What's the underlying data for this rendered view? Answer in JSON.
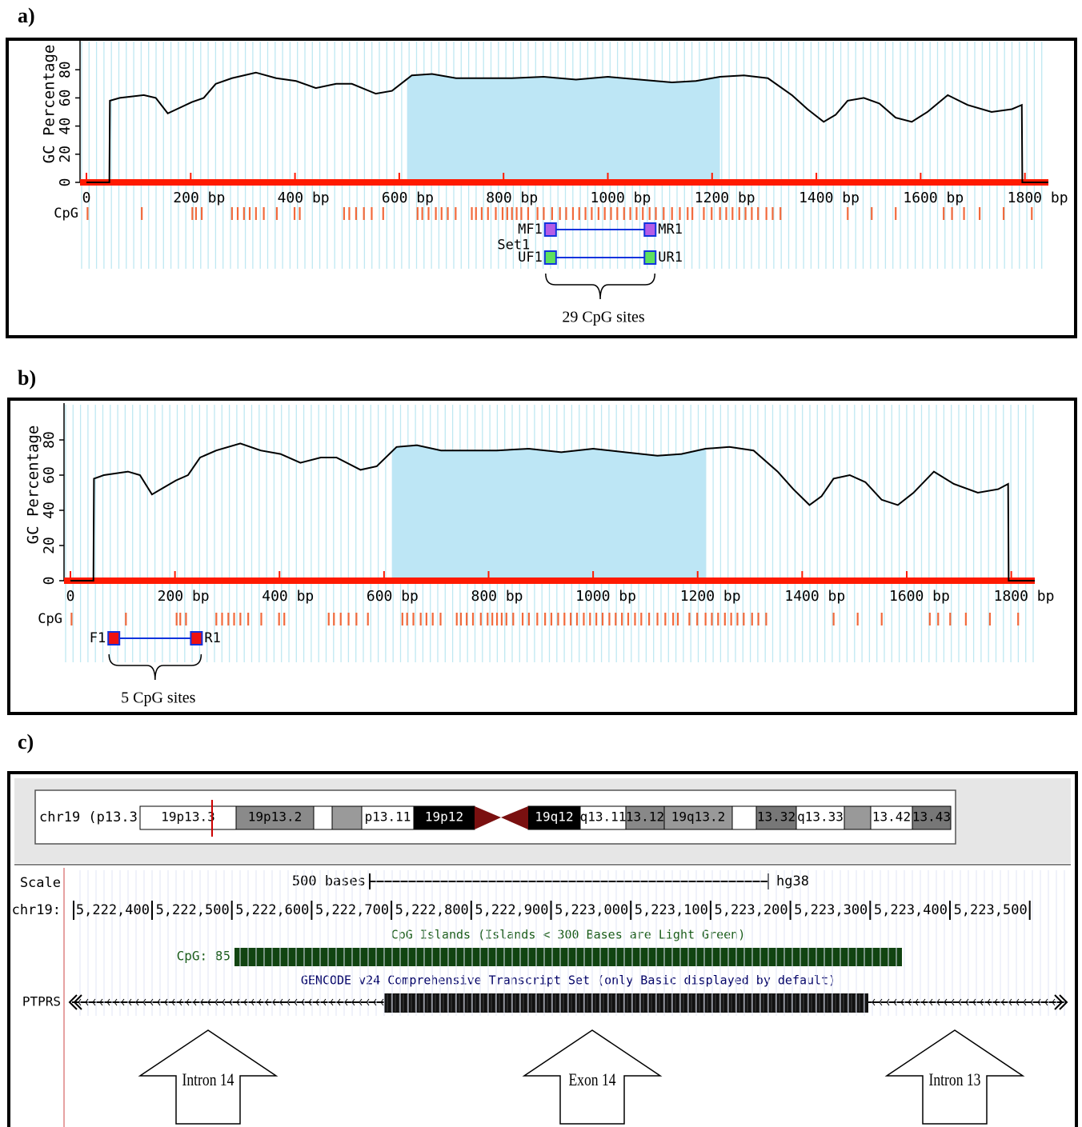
{
  "chart_data": [
    {
      "type": "line",
      "label": "a)",
      "y_label": "GC Percentage",
      "color": "#000000",
      "x": [
        0,
        44,
        45,
        64,
        110,
        133,
        156,
        179,
        202,
        225,
        248,
        279,
        325,
        364,
        402,
        440,
        479,
        509,
        555,
        586,
        624,
        663,
        709,
        755,
        816,
        877,
        939,
        1000,
        1061,
        1123,
        1169,
        1215,
        1261,
        1307,
        1353,
        1383,
        1414,
        1437,
        1460,
        1491,
        1521,
        1552,
        1583,
        1613,
        1652,
        1690,
        1736,
        1775,
        1794,
        1795,
        1845
      ],
      "values": [
        0,
        0,
        58,
        60,
        62,
        60,
        49,
        53,
        57,
        60,
        70,
        74,
        78,
        74,
        72,
        67,
        70,
        70,
        63,
        65,
        76,
        77,
        74,
        74,
        74,
        75,
        73,
        75,
        73,
        71,
        72,
        75,
        76,
        74,
        62,
        52,
        43,
        48,
        58,
        60,
        56,
        46,
        43,
        50,
        62,
        55,
        50,
        52,
        55,
        0,
        0
      ],
      "xlim": [
        0,
        1845
      ],
      "ylim": [
        0,
        100
      ],
      "xticks": [
        0,
        {
          "value": 200,
          "label": "200  bp"
        },
        {
          "value": 400,
          "label": "400  bp"
        },
        {
          "value": 600,
          "label": "600  bp"
        },
        {
          "value": 800,
          "label": "800  bp"
        },
        {
          "value": 1000,
          "label": "1000  bp"
        },
        {
          "value": 1200,
          "label": "1200  bp"
        },
        {
          "value": 1400,
          "label": "1400  bp"
        },
        {
          "value": 1600,
          "label": "1600  bp"
        },
        {
          "value": 1800,
          "label": "1800  bp"
        }
      ],
      "yticks": [
        0,
        20,
        40,
        60,
        80
      ],
      "highlight": [
        615,
        1215
      ],
      "highlight_color": "#bde6f5",
      "baseline_color": "#ff1a00",
      "cpg_label": "CpG",
      "cpg_color": "#f26a3c",
      "cpg_sites": [
        2,
        106,
        203,
        210,
        221,
        279,
        290,
        302,
        313,
        325,
        340,
        365,
        399,
        409,
        494,
        504,
        517,
        532,
        547,
        569,
        635,
        644,
        656,
        670,
        681,
        693,
        708,
        739,
        747,
        758,
        770,
        785,
        798,
        807,
        816,
        825,
        834,
        847,
        865,
        877,
        893,
        908,
        920,
        933,
        945,
        957,
        969,
        982,
        994,
        1006,
        1018,
        1031,
        1043,
        1055,
        1067,
        1080,
        1092,
        1107,
        1123,
        1138,
        1153,
        1162,
        1184,
        1199,
        1215,
        1227,
        1239,
        1252,
        1264,
        1276,
        1288,
        1304,
        1316,
        1331,
        1460,
        1506,
        1552,
        1644,
        1660,
        1683,
        1713,
        1759,
        1813
      ],
      "set_label": "Set1",
      "primers": [
        {
          "forward": "MF1",
          "reverse": "MR1",
          "start": 890,
          "end": 1081,
          "color": "#b45ce6"
        },
        {
          "forward": "UF1",
          "reverse": "UR1",
          "start": 890,
          "end": 1081,
          "color": "#5de05d"
        }
      ],
      "annotation": "29 CpG sites"
    },
    {
      "type": "line",
      "label": "b)",
      "y_label": "GC Percentage",
      "color": "#000000",
      "x": [
        0,
        44,
        45,
        64,
        110,
        133,
        156,
        179,
        202,
        225,
        248,
        279,
        325,
        364,
        402,
        440,
        479,
        509,
        555,
        586,
        624,
        663,
        709,
        755,
        816,
        877,
        939,
        1000,
        1061,
        1123,
        1169,
        1215,
        1261,
        1307,
        1353,
        1383,
        1414,
        1437,
        1460,
        1491,
        1521,
        1552,
        1583,
        1613,
        1652,
        1690,
        1736,
        1775,
        1794,
        1795,
        1845
      ],
      "values": [
        0,
        0,
        58,
        60,
        62,
        60,
        49,
        53,
        57,
        60,
        70,
        74,
        78,
        74,
        72,
        67,
        70,
        70,
        63,
        65,
        76,
        77,
        74,
        74,
        74,
        75,
        73,
        75,
        73,
        71,
        72,
        75,
        76,
        74,
        62,
        52,
        43,
        48,
        58,
        60,
        56,
        46,
        43,
        50,
        62,
        55,
        50,
        52,
        55,
        0,
        0
      ],
      "xlim": [
        0,
        1845
      ],
      "ylim": [
        0,
        100
      ],
      "xticks": [
        0,
        {
          "value": 200,
          "label": "200  bp"
        },
        {
          "value": 400,
          "label": "400  bp"
        },
        {
          "value": 600,
          "label": "600  bp"
        },
        {
          "value": 800,
          "label": "800  bp"
        },
        {
          "value": 1000,
          "label": "1000  bp"
        },
        {
          "value": 1200,
          "label": "1200  bp"
        },
        {
          "value": 1400,
          "label": "1400  bp"
        },
        {
          "value": 1600,
          "label": "1600  bp"
        },
        {
          "value": 1800,
          "label": "1800  bp"
        }
      ],
      "yticks": [
        0,
        20,
        40,
        60,
        80
      ],
      "highlight": [
        615,
        1215
      ],
      "highlight_color": "#bde6f5",
      "baseline_color": "#ff1a00",
      "cpg_label": "CpG",
      "cpg_color": "#f26a3c",
      "cpg_sites": [
        2,
        106,
        203,
        210,
        221,
        279,
        290,
        302,
        313,
        325,
        340,
        365,
        399,
        409,
        494,
        504,
        517,
        532,
        547,
        569,
        635,
        644,
        656,
        670,
        681,
        693,
        708,
        739,
        747,
        758,
        770,
        785,
        798,
        807,
        816,
        825,
        834,
        847,
        865,
        877,
        893,
        908,
        920,
        933,
        945,
        957,
        969,
        982,
        994,
        1006,
        1018,
        1031,
        1043,
        1055,
        1067,
        1080,
        1092,
        1107,
        1123,
        1138,
        1153,
        1162,
        1184,
        1199,
        1215,
        1227,
        1239,
        1252,
        1264,
        1276,
        1288,
        1304,
        1316,
        1331,
        1460,
        1506,
        1552,
        1644,
        1660,
        1683,
        1713,
        1759,
        1813
      ],
      "primers": [
        {
          "forward": "F1",
          "reverse": "R1",
          "start": 83,
          "end": 241,
          "color": "#ee1111"
        }
      ],
      "annotation": "5 CpG sites"
    }
  ],
  "panel_c": {
    "label": "c)",
    "ideogram": {
      "chrom_label": "chr19 (p13.3)",
      "bands": [
        "19p13.3",
        "19p13.2",
        "p13.11",
        "19p12",
        "19q12",
        "q13.11",
        "13.12",
        "19q13.2",
        "13.32",
        "q13.33",
        "13.42",
        "13.43"
      ]
    },
    "scale": {
      "label": "Scale",
      "span": "500 bases",
      "assembly": "hg38"
    },
    "position": {
      "chrom": "chr19:",
      "ticks": [
        "5,222,400",
        "5,222,500",
        "5,222,600",
        "5,222,700",
        "5,222,800",
        "5,222,900",
        "5,223,000",
        "5,223,100",
        "5,223,200",
        "5,223,300",
        "5,223,400",
        "5,223,500"
      ]
    },
    "cpg_track": {
      "title": "CpG Islands (Islands < 300 Bases are Light Green)",
      "item": "CpG: 85"
    },
    "gene_track": {
      "title": "GENCODE v24 Comprehensive Transcript Set (only Basic displayed by default)",
      "gene": "PTPRS"
    },
    "arrows": [
      "Intron 14",
      "Exon 14",
      "Intron 13"
    ]
  }
}
